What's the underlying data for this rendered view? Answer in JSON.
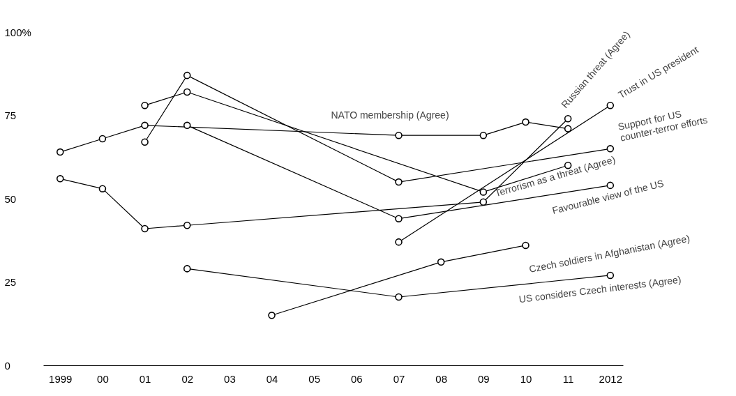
{
  "chart_data": {
    "type": "line",
    "marker": "circle",
    "line_style": "solid",
    "grid": false,
    "xlim": [
      1998.6,
      2012.3
    ],
    "ylim": [
      0,
      100
    ],
    "xticks": [
      1999,
      {
        "value": 2000,
        "label": "00"
      },
      {
        "value": 2001,
        "label": "01"
      },
      {
        "value": 2002,
        "label": "02"
      },
      {
        "value": 2003,
        "label": "03"
      },
      {
        "value": 2004,
        "label": "04"
      },
      {
        "value": 2005,
        "label": "05"
      },
      {
        "value": 2006,
        "label": "06"
      },
      {
        "value": 2007,
        "label": "07"
      },
      {
        "value": 2008,
        "label": "08"
      },
      {
        "value": 2009,
        "label": "09"
      },
      {
        "value": 2010,
        "label": "10"
      },
      {
        "value": 2011,
        "label": "11"
      },
      2012
    ],
    "yticks": [
      0,
      25,
      50,
      75,
      {
        "value": 100,
        "label": "100%"
      }
    ],
    "series": [
      {
        "name": "NATO membership (Agree)",
        "color": "#000000",
        "x": [
          1999,
          2000,
          2001,
          2007,
          2009,
          2010,
          2011
        ],
        "values": [
          64,
          68,
          72,
          69,
          69,
          73,
          71
        ]
      },
      {
        "name": "Russian threat (Agree)",
        "color": "#000000",
        "x": [
          1999,
          2000,
          2001,
          2002,
          2009,
          2011
        ],
        "values": [
          56,
          53,
          41,
          42,
          49,
          74
        ]
      },
      {
        "name": "Trust in US president",
        "color": "#000000",
        "x": [
          2007,
          2012
        ],
        "values": [
          37,
          78
        ]
      },
      {
        "name": "Support for US\ncounter-terror efforts",
        "color": "#000000",
        "x": [
          2001,
          2002,
          2007,
          2012
        ],
        "values": [
          67,
          87,
          55,
          65
        ]
      },
      {
        "name": "Terrorism as a threat (Agree)",
        "color": "#000000",
        "x": [
          2001,
          2002,
          2009,
          2011
        ],
        "values": [
          78,
          82,
          52,
          60
        ]
      },
      {
        "name": "Favourable view of the US",
        "color": "#000000",
        "x": [
          2002,
          2007,
          2012
        ],
        "values": [
          72,
          44,
          54
        ]
      },
      {
        "name": "Czech soldiers in Afghanistan (Agree)",
        "color": "#000000",
        "x": [
          2004,
          2008,
          2010
        ],
        "values": [
          15,
          31,
          36
        ]
      },
      {
        "name": "US considers Czech interests (Agree)",
        "color": "#000000",
        "x": [
          2002,
          2007,
          2012
        ],
        "values": [
          29,
          20.5,
          27
        ]
      }
    ]
  }
}
